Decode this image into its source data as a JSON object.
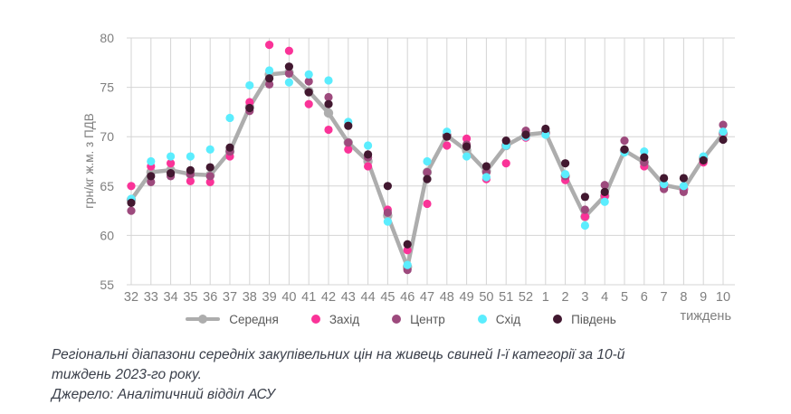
{
  "chart_data": {
    "type": "line",
    "title": "",
    "xlabel": "тиждень",
    "ylabel": "грн/кг ж.м. з ПДВ",
    "ylim": [
      55,
      80
    ],
    "yticks": [
      55,
      60,
      65,
      70,
      75,
      80
    ],
    "grid": true,
    "legend_position": "bottom",
    "categories": [
      "32",
      "33",
      "34",
      "35",
      "36",
      "37",
      "38",
      "39",
      "40",
      "41",
      "42",
      "43",
      "44",
      "45",
      "46",
      "47",
      "48",
      "49",
      "50",
      "51",
      "52",
      "1",
      "2",
      "3",
      "4",
      "5",
      "6",
      "7",
      "8",
      "9",
      "10"
    ],
    "series": [
      {
        "name": "Середня",
        "color": "#adadad",
        "style": "line+marker",
        "values": [
          63.6,
          66.4,
          66.6,
          66.2,
          66.1,
          68.5,
          73.0,
          76.3,
          76.5,
          74.6,
          72.4,
          69.4,
          67.5,
          62.0,
          56.8,
          66.4,
          70.1,
          68.6,
          66.5,
          69.1,
          70.2,
          70.4,
          66.0,
          61.9,
          64.0,
          68.6,
          67.4,
          65.1,
          64.7,
          67.8,
          70.3
        ]
      },
      {
        "name": "Захід",
        "color": "#fa3398",
        "style": "marker",
        "values": [
          65.0,
          67.0,
          67.3,
          65.5,
          65.4,
          68.0,
          73.5,
          79.3,
          78.7,
          73.3,
          70.7,
          68.7,
          67.0,
          62.6,
          58.5,
          63.2,
          69.1,
          69.8,
          65.7,
          67.3,
          69.9,
          70.3,
          65.6,
          61.9,
          64.0,
          68.5,
          67.0,
          65.0,
          64.6,
          67.4,
          70.4
        ]
      },
      {
        "name": "Центр",
        "color": "#9d4a7d",
        "style": "marker",
        "values": [
          62.5,
          65.4,
          66.0,
          66.2,
          66.0,
          68.5,
          72.6,
          75.3,
          76.4,
          75.6,
          74.0,
          69.4,
          67.9,
          62.3,
          56.5,
          66.4,
          70.2,
          69.2,
          66.4,
          69.1,
          70.6,
          70.4,
          66.0,
          62.6,
          65.1,
          69.6,
          67.4,
          64.7,
          64.4,
          67.7,
          71.2
        ]
      },
      {
        "name": "Схід",
        "color": "#5bedfe",
        "style": "marker",
        "values": [
          63.7,
          67.5,
          68.0,
          68.0,
          68.7,
          71.9,
          75.2,
          76.7,
          75.5,
          76.3,
          75.7,
          71.5,
          69.1,
          61.4,
          57.0,
          67.5,
          70.5,
          68.0,
          65.9,
          69.1,
          70.0,
          70.2,
          66.2,
          61.0,
          63.4,
          68.4,
          68.5,
          65.2,
          65.0,
          68.0,
          70.5
        ]
      },
      {
        "name": "Південь",
        "color": "#421830",
        "style": "marker",
        "values": [
          63.3,
          66.0,
          66.3,
          66.6,
          66.9,
          68.9,
          72.9,
          75.9,
          77.1,
          74.5,
          73.3,
          71.1,
          68.2,
          65.0,
          59.1,
          65.7,
          70.0,
          69.0,
          67.0,
          69.6,
          70.2,
          70.8,
          67.3,
          63.9,
          64.4,
          68.7,
          67.9,
          65.8,
          65.8,
          67.6,
          69.7
        ]
      }
    ]
  },
  "style": {
    "grid_color": "#d4d4d4",
    "axis_label_color": "#7f7f7f",
    "legend_text_color": "#595959"
  },
  "caption": {
    "line1": "Регіональні діапазони середніх закупівельних цін на живець свиней І-ї категорії за 10-й тиждень 2023-го року.",
    "line2": "Джерело: Аналітичний відділ АСУ"
  }
}
